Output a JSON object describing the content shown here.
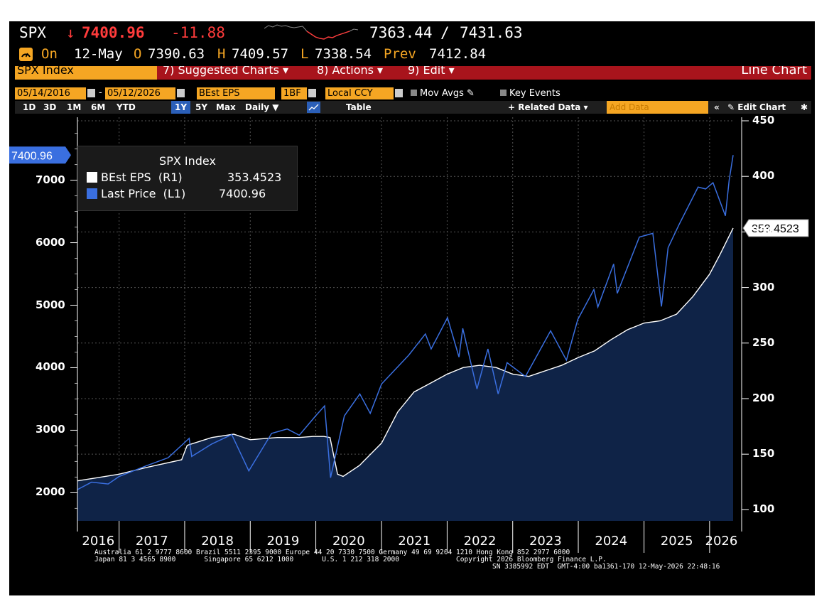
{
  "header": {
    "ticker": "SPX",
    "arrow": "↓",
    "last": "7400.96",
    "change": "-11.88",
    "range_low": "7363.44",
    "range_sep": "/",
    "range_high": "7431.63",
    "on_label": "On",
    "date": "12-May",
    "o_label": "O",
    "open": "7390.63",
    "h_label": "H",
    "high": "7409.57",
    "l_label": "L",
    "low": "7338.54",
    "prev_label": "Prev",
    "prev": "7412.84"
  },
  "menubar": {
    "security": "SPX Index",
    "suggested": "Suggested Charts",
    "actions": "Actions",
    "edit": "Edit",
    "chart_type": "Line Chart"
  },
  "toolbar": {
    "start_date": "05/14/2016",
    "date_sep": "-",
    "end_date": "05/12/2026",
    "field": "BEst EPS",
    "period": "1BF",
    "currency": "Local CCY",
    "mov_avgs": "Mov Avgs",
    "key_events": "Key Events",
    "ranges": [
      "1D",
      "3D",
      "1M",
      "6M",
      "YTD",
      "1Y",
      "5Y",
      "Max"
    ],
    "active_range": "1Y",
    "frequency": "Daily ▼",
    "table": "Table",
    "related": "+ Related Data",
    "add_data_placeholder": "Add Data",
    "edit_chart": "Edit Chart"
  },
  "colors": {
    "price": "#3a6fe0",
    "eps": "#ffffff",
    "area": "#0f2347",
    "accent_orange": "#f5a623",
    "menu_red": "#a8141c"
  },
  "chart_data": {
    "type": "line",
    "title": "SPX Index",
    "xlabel": "",
    "x_ticks": [
      "2016",
      "2017",
      "2018",
      "2019",
      "2020",
      "2021",
      "2022",
      "2023",
      "2024",
      "2025",
      "2026"
    ],
    "y_left_ticks": [
      2000,
      3000,
      4000,
      5000,
      6000,
      7000
    ],
    "y_left_lim": [
      1550,
      7950
    ],
    "y_right_ticks": [
      100,
      150,
      200,
      250,
      300,
      350,
      400,
      450
    ],
    "y_right_lim": [
      90,
      450
    ],
    "grid": true,
    "legend_position": "top-left",
    "series": [
      {
        "name": "BEst EPS  (R1)",
        "legend_value": "353.4523",
        "axis": "right",
        "style": "line-with-area",
        "last_label": "353.4523",
        "x": [
          "2016-05-14",
          "2016-08-01",
          "2017-01-01",
          "2017-06-01",
          "2017-12-15",
          "2018-01-15",
          "2018-06-01",
          "2018-10-01",
          "2019-01-01",
          "2019-06-01",
          "2019-10-01",
          "2019-12-15",
          "2020-02-15",
          "2020-03-20",
          "2020-05-01",
          "2020-06-01",
          "2020-09-01",
          "2021-01-01",
          "2021-04-01",
          "2021-07-01",
          "2021-10-01",
          "2022-01-01",
          "2022-04-01",
          "2022-07-01",
          "2022-10-01",
          "2023-01-01",
          "2023-04-01",
          "2023-07-01",
          "2023-10-01",
          "2024-01-01",
          "2024-04-01",
          "2024-07-01",
          "2024-10-01",
          "2025-01-01",
          "2025-04-01",
          "2025-07-01",
          "2025-10-01",
          "2026-01-01",
          "2026-03-01",
          "2026-05-12"
        ],
        "values": [
          126,
          128,
          132,
          138,
          145,
          158,
          165,
          168,
          163,
          165,
          165,
          166,
          166,
          165,
          132,
          130,
          140,
          160,
          188,
          206,
          214,
          222,
          228,
          230,
          228,
          222,
          220,
          225,
          230,
          237,
          243,
          253,
          262,
          268,
          270,
          276,
          292,
          312,
          330,
          353.45
        ]
      },
      {
        "name": "Last Price  (L1)",
        "legend_value": "7400.96",
        "axis": "left",
        "style": "line",
        "last_label": "7400.96",
        "x": [
          "2016-05-14",
          "2016-08-01",
          "2016-11-01",
          "2017-01-01",
          "2017-06-01",
          "2017-10-01",
          "2018-01-26",
          "2018-02-09",
          "2018-06-01",
          "2018-09-20",
          "2018-12-24",
          "2019-04-30",
          "2019-07-26",
          "2019-10-01",
          "2019-12-31",
          "2020-02-19",
          "2020-03-23",
          "2020-06-08",
          "2020-09-02",
          "2020-10-30",
          "2021-01-01",
          "2021-06-01",
          "2021-09-02",
          "2021-10-04",
          "2022-01-03",
          "2022-03-08",
          "2022-03-29",
          "2022-06-16",
          "2022-08-16",
          "2022-10-12",
          "2022-12-01",
          "2023-03-13",
          "2023-07-31",
          "2023-10-27",
          "2023-12-29",
          "2024-03-28",
          "2024-04-19",
          "2024-07-16",
          "2024-08-05",
          "2024-12-06",
          "2025-02-19",
          "2025-04-08",
          "2025-05-15",
          "2025-07-15",
          "2025-10-29",
          "2025-12-10",
          "2026-01-20",
          "2026-03-30",
          "2026-04-20",
          "2026-05-12"
        ],
        "values": [
          2050,
          2170,
          2140,
          2260,
          2430,
          2560,
          2870,
          2580,
          2780,
          2930,
          2350,
          2950,
          3020,
          2920,
          3230,
          3390,
          2240,
          3230,
          3580,
          3270,
          3740,
          4200,
          4540,
          4300,
          4800,
          4170,
          4630,
          3660,
          4300,
          3580,
          4080,
          3860,
          4590,
          4120,
          4770,
          5250,
          4970,
          5660,
          5190,
          6090,
          6150,
          4980,
          5920,
          6290,
          6890,
          6860,
          6960,
          6430,
          7000,
          7400.96
        ]
      }
    ]
  },
  "footer": {
    "line1": "Australia 61 2 9777 8600 Brazil 5511 2395 9000 Europe 44 20 7330 7500 Germany 49 69 9204 1210 Hong Kong 852 2977 6000",
    "line2": "Japan 81 3 4565 8900       Singapore 65 6212 1000       U.S. 1 212 318 2000              Copyright 2026 Bloomberg Finance L.P.",
    "line3": "SN 3385992 EDT  GMT-4:00 ba1361-170 12-May-2026 22:48:16"
  }
}
